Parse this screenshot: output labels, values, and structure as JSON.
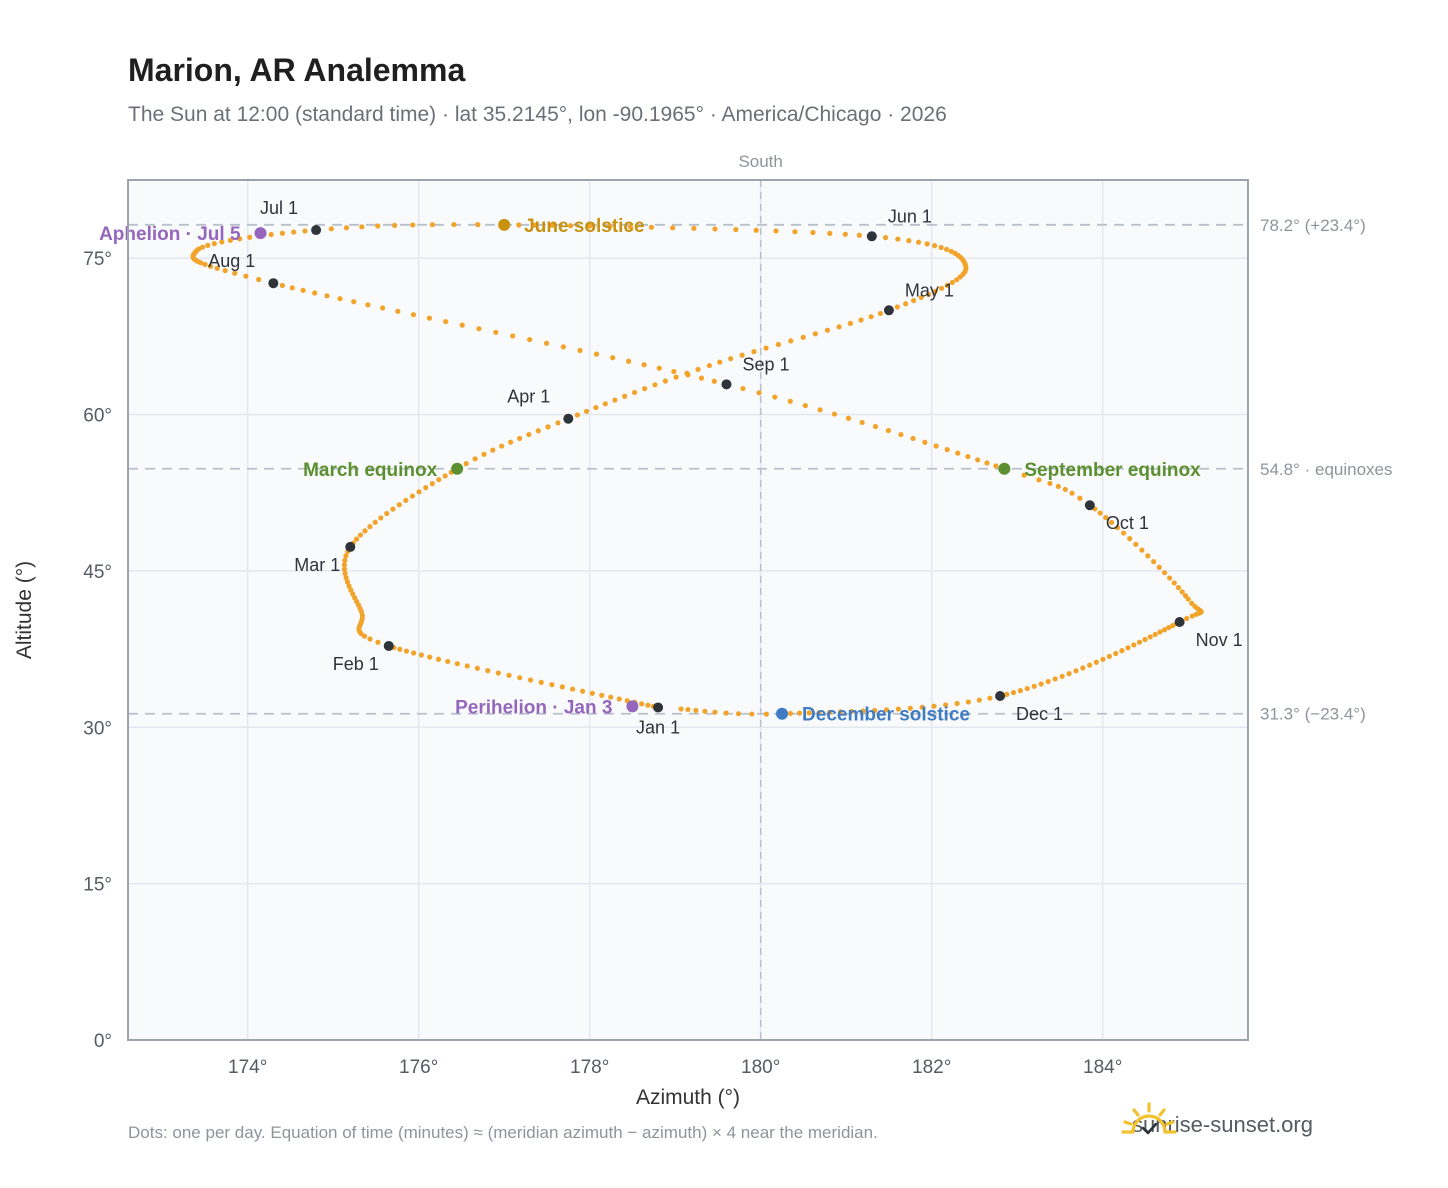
{
  "header": {
    "title": "Marion, AR Analemma",
    "subtitle": "The Sun at 12:00 (standard time) · lat 35.2145°, lon -90.1965° · America/Chicago · 2026"
  },
  "footer": {
    "note": "Dots: one per day. Equation of time (minutes) ≈ (meridian azimuth − azimuth) × 4 near the meridian.",
    "brand": "sunrise-sunset.org"
  },
  "colors": {
    "path": "#f2a32a",
    "month_marker": "#2f343b",
    "equinox": "#5b8f2f",
    "june_solstice": "#c89210",
    "december_solstice": "#3f7cc4",
    "apsis": "#9467bd",
    "plot_bg": "#f8fafc",
    "grid": "#e3e8ee",
    "frame": "#9aa3ae",
    "reference_line": "#b8c0c9"
  },
  "chart_data": {
    "type": "scatter",
    "title": "Marion, AR Analemma",
    "xlabel": "Azimuth (°)",
    "ylabel": "Altitude (°)",
    "xlim": [
      172.6,
      185.7
    ],
    "ylim": [
      0,
      82.5
    ],
    "x_ticks": [
      174,
      176,
      178,
      180,
      182,
      184
    ],
    "x_tick_labels": [
      "174°",
      "176°",
      "178°",
      "180°",
      "182°",
      "184°"
    ],
    "y_ticks": [
      0,
      15,
      30,
      45,
      60,
      75
    ],
    "y_tick_labels": [
      "0°",
      "15°",
      "30°",
      "45°",
      "60°",
      "75°"
    ],
    "grid": true,
    "meridian": {
      "azimuth": 180,
      "label": "South"
    },
    "reference_lines": [
      {
        "altitude": 78.2,
        "label": "78.2° (+23.4°)"
      },
      {
        "altitude": 54.8,
        "label": "54.8° · equinoxes"
      },
      {
        "altitude": 31.3,
        "label": "31.3° (−23.4°)"
      }
    ],
    "series": [
      {
        "label_note": "one dot per day",
        "anchors": [
          {
            "day": 1,
            "az": 178.8,
            "alt": 31.9
          },
          {
            "day": 32,
            "az": 175.65,
            "alt": 37.8
          },
          {
            "day": 44,
            "az": 175.33,
            "alt": 41.1
          },
          {
            "day": 60,
            "az": 175.2,
            "alt": 47.3
          },
          {
            "day": 79,
            "az": 176.45,
            "alt": 54.8
          },
          {
            "day": 91,
            "az": 177.75,
            "alt": 59.6
          },
          {
            "day": 105,
            "az": 179.4,
            "alt": 64.7
          },
          {
            "day": 121,
            "az": 181.5,
            "alt": 70.0
          },
          {
            "day": 136,
            "az": 182.4,
            "alt": 74.2
          },
          {
            "day": 152,
            "az": 181.3,
            "alt": 77.1
          },
          {
            "day": 172,
            "az": 177.0,
            "alt": 78.2
          },
          {
            "day": 182,
            "az": 174.8,
            "alt": 77.7
          },
          {
            "day": 196,
            "az": 173.4,
            "alt": 75.7
          },
          {
            "day": 213,
            "az": 174.3,
            "alt": 72.6
          },
          {
            "day": 244,
            "az": 179.6,
            "alt": 62.9
          },
          {
            "day": 266,
            "az": 182.85,
            "alt": 54.8
          },
          {
            "day": 274,
            "az": 183.85,
            "alt": 51.3
          },
          {
            "day": 293,
            "az": 185.0,
            "alt": 42.3
          },
          {
            "day": 305,
            "az": 184.9,
            "alt": 40.1
          },
          {
            "day": 335,
            "az": 182.8,
            "alt": 33.0
          },
          {
            "day": 355,
            "az": 180.25,
            "alt": 31.3
          },
          {
            "day": 365,
            "az": 179.0,
            "alt": 31.8
          }
        ]
      }
    ],
    "month_markers": [
      {
        "label": "Jan 1",
        "az": 178.8,
        "alt": 31.9,
        "pos": "below"
      },
      {
        "label": "Feb 1",
        "az": 175.65,
        "alt": 37.8,
        "pos": "below-left"
      },
      {
        "label": "Mar 1",
        "az": 175.2,
        "alt": 47.3,
        "pos": "below-left"
      },
      {
        "label": "Apr 1",
        "az": 177.75,
        "alt": 59.6,
        "pos": "above-left"
      },
      {
        "label": "May 1",
        "az": 181.5,
        "alt": 70.0,
        "pos": "above-right"
      },
      {
        "label": "Jun 1",
        "az": 181.3,
        "alt": 77.1,
        "pos": "above-right"
      },
      {
        "label": "Jul 1",
        "az": 174.8,
        "alt": 77.7,
        "pos": "above-left"
      },
      {
        "label": "Aug 1",
        "az": 174.3,
        "alt": 72.6,
        "pos": "above-left"
      },
      {
        "label": "Sep 1",
        "az": 179.6,
        "alt": 62.9,
        "pos": "above-right"
      },
      {
        "label": "Oct 1",
        "az": 183.85,
        "alt": 51.3,
        "pos": "below-right"
      },
      {
        "label": "Nov 1",
        "az": 184.9,
        "alt": 40.1,
        "pos": "below-right"
      },
      {
        "label": "Dec 1",
        "az": 182.8,
        "alt": 33.0,
        "pos": "below-right"
      }
    ],
    "events": [
      {
        "label": "March equinox",
        "az": 176.45,
        "alt": 54.8,
        "color_key": "equinox",
        "pos": "left"
      },
      {
        "label": "September equinox",
        "az": 182.85,
        "alt": 54.8,
        "color_key": "equinox",
        "pos": "right"
      },
      {
        "label": "June solstice",
        "az": 177.0,
        "alt": 78.2,
        "color_key": "june_solstice",
        "pos": "right"
      },
      {
        "label": "December solstice",
        "az": 180.25,
        "alt": 31.3,
        "color_key": "december_solstice",
        "pos": "right"
      },
      {
        "label": "Aphelion · Jul 5",
        "az": 174.15,
        "alt": 77.4,
        "color_key": "apsis",
        "pos": "left"
      },
      {
        "label": "Perihelion · Jan 3",
        "az": 178.5,
        "alt": 32.0,
        "color_key": "apsis",
        "pos": "left"
      }
    ]
  }
}
